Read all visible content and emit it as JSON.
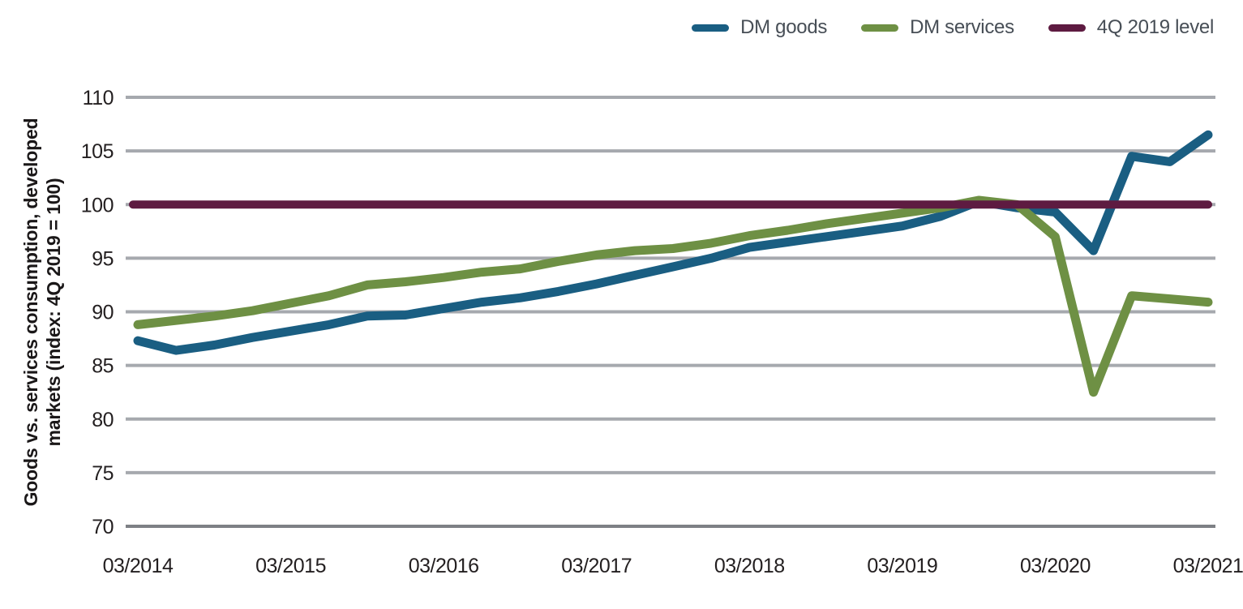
{
  "chart_data": {
    "type": "line",
    "title": "",
    "ylabel_lines": [
      "Goods vs. services consumption, developed",
      "markets (index: 4Q 2019 = 100)"
    ],
    "ylim": [
      70,
      110
    ],
    "y_ticks": [
      110,
      105,
      100,
      95,
      90,
      85,
      80,
      75,
      70
    ],
    "x_tick_labels": [
      "03/2014",
      "03/2015",
      "03/2016",
      "03/2017",
      "03/2018",
      "03/2019",
      "03/2020",
      "03/2021"
    ],
    "grid": true,
    "legend_position": "top-right",
    "categories": [
      "03/2014",
      "06/2014",
      "09/2014",
      "12/2014",
      "03/2015",
      "06/2015",
      "09/2015",
      "12/2015",
      "03/2016",
      "06/2016",
      "09/2016",
      "12/2016",
      "03/2017",
      "06/2017",
      "09/2017",
      "12/2017",
      "03/2018",
      "06/2018",
      "09/2018",
      "12/2018",
      "03/2019",
      "06/2019",
      "09/2019",
      "12/2019",
      "03/2020",
      "06/2020",
      "09/2020",
      "12/2020",
      "03/2021"
    ],
    "series": [
      {
        "name": "DM goods",
        "color": "#1a5e82",
        "values": [
          87.3,
          86.4,
          86.9,
          87.6,
          88.2,
          88.8,
          89.6,
          89.7,
          90.3,
          90.9,
          91.3,
          91.9,
          92.6,
          93.4,
          94.2,
          95.0,
          96.0,
          96.5,
          97.0,
          97.5,
          98.0,
          98.9,
          100.3,
          99.7,
          99.3,
          95.7,
          104.5,
          104.0,
          106.5
        ]
      },
      {
        "name": "DM services",
        "color": "#6e9044",
        "values": [
          88.8,
          89.2,
          89.6,
          90.1,
          90.8,
          91.5,
          92.5,
          92.8,
          93.2,
          93.7,
          94.0,
          94.7,
          95.3,
          95.7,
          95.9,
          96.4,
          97.1,
          97.6,
          98.2,
          98.7,
          99.2,
          99.7,
          100.4,
          100.0,
          97.0,
          82.5,
          91.5,
          91.2,
          90.9
        ]
      },
      {
        "name": "4Q 2019 level",
        "color": "#5e1b41",
        "ref_value": 100
      }
    ],
    "colors": {
      "gridline": "#a6a9ae",
      "baseline": "#7d8085",
      "tick_text": "#231f20",
      "legend_text": "#474e56"
    }
  }
}
